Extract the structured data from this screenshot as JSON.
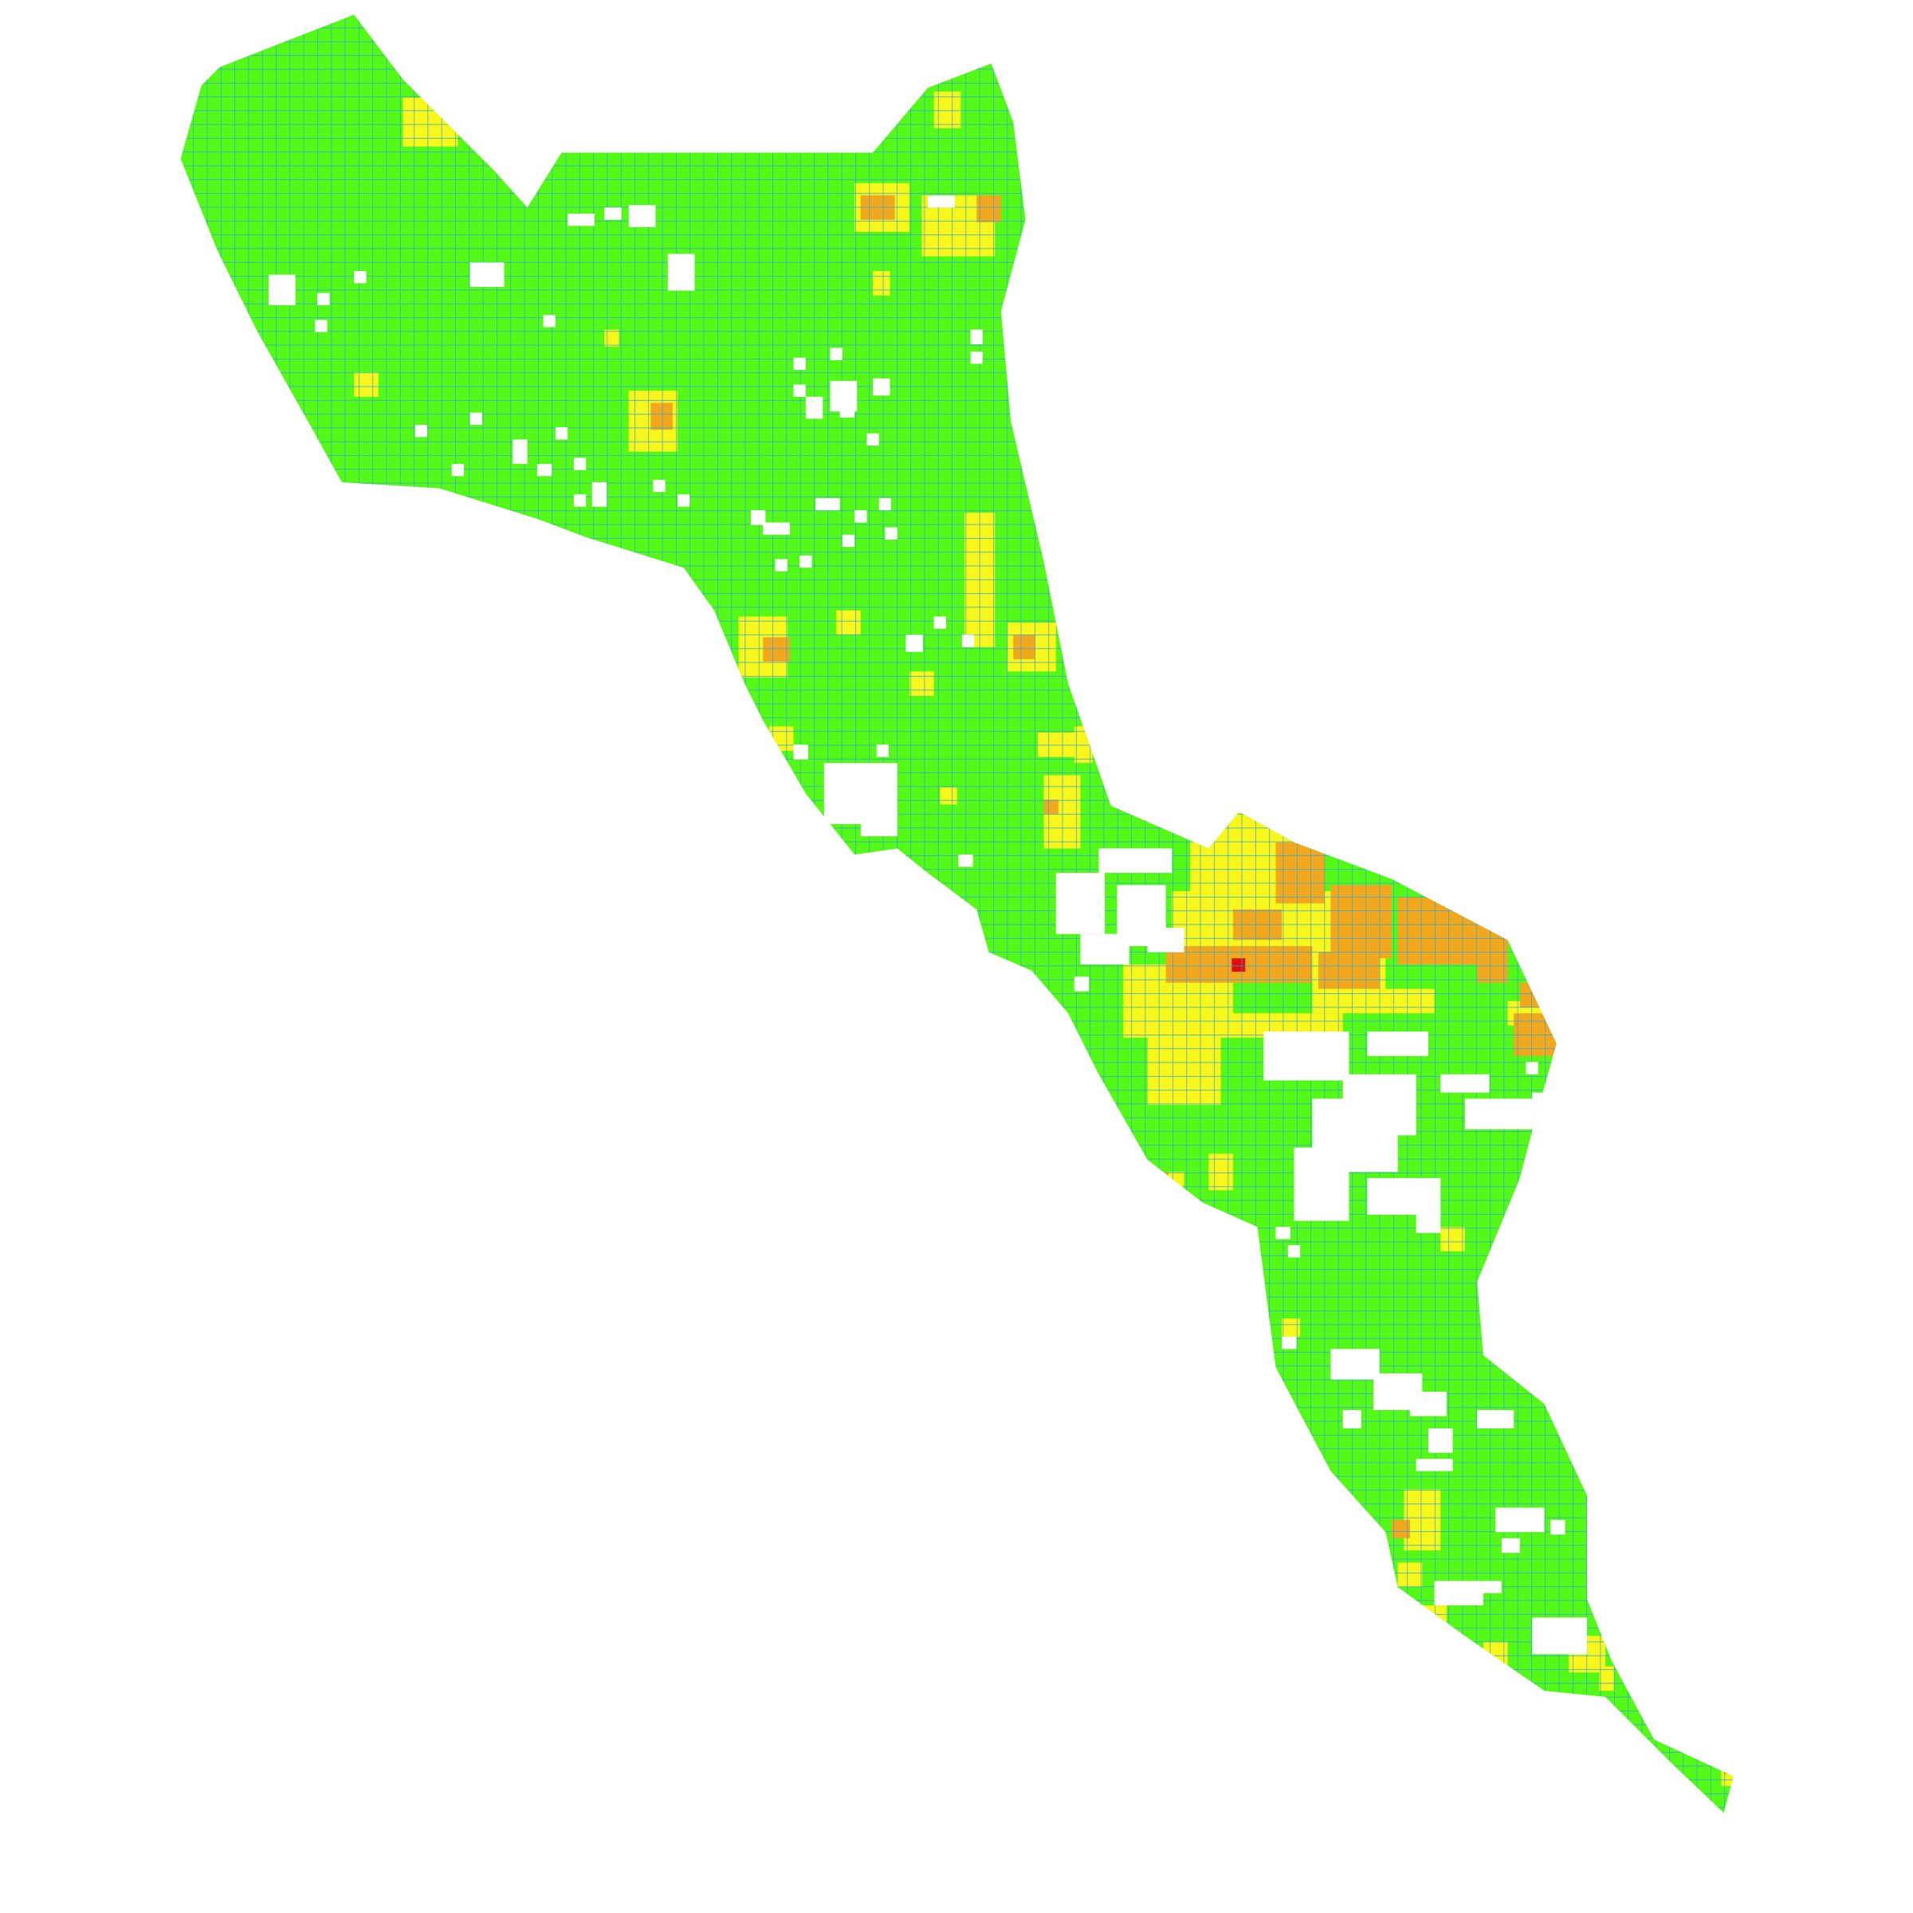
{
  "map": {
    "kind": "choropleth grid map",
    "title": "",
    "legend": "",
    "grid_line_color": "#2fa3d6",
    "background_color": "#ffffff",
    "classes": [
      {
        "id": "low",
        "color": "#54f917"
      },
      {
        "id": "medium",
        "color": "#f7f71b"
      },
      {
        "id": "high",
        "color": "#f2a81d"
      },
      {
        "id": "very-high",
        "color": "#e00d0d"
      }
    ],
    "features": {
      "peak_cell": {
        "class": "very-high"
      }
    }
  }
}
